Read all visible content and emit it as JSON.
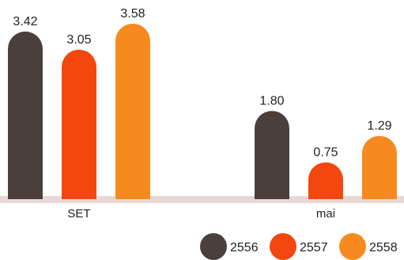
{
  "chart_data": {
    "type": "bar",
    "categories": [
      "SET",
      "mai"
    ],
    "series": [
      {
        "name": "2556",
        "values": [
          3.42,
          1.8
        ],
        "color": "#4a3f3b"
      },
      {
        "name": "2557",
        "values": [
          3.05,
          0.75
        ],
        "color": "#f2470f"
      },
      {
        "name": "2558",
        "values": [
          3.58,
          1.29
        ],
        "color": "#f68a1e"
      }
    ],
    "value_labels": [
      [
        "3.42",
        "1.80"
      ],
      [
        "3.05",
        "0.75"
      ],
      [
        "3.58",
        "1.29"
      ]
    ],
    "ylim": [
      0,
      3.58
    ],
    "grid": false,
    "legend_position": "bottom-right",
    "baseline_color": "#e6d8d5"
  }
}
